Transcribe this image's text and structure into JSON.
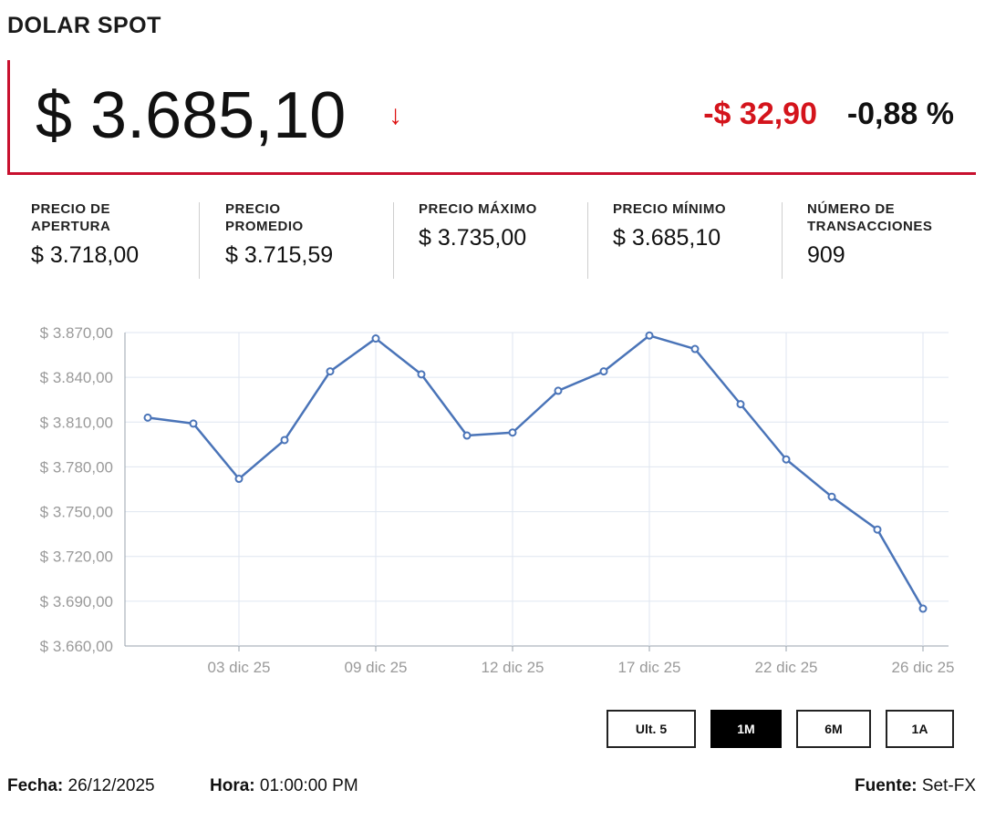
{
  "title": "DOLAR SPOT",
  "price": "$ 3.685,10",
  "arrow": "↓",
  "change": "-$ 32,90",
  "change_pct": "-0,88 %",
  "colors": {
    "accent": "#c8102e",
    "negative": "#d4141c",
    "line": "#4a74b8",
    "grid": "#dfe6f0"
  },
  "stats": [
    {
      "label": "PRECIO DE\nAPERTURA",
      "value": "$ 3.718,00"
    },
    {
      "label": "PRECIO\nPROMEDIO",
      "value": "$ 3.715,59"
    },
    {
      "label": "PRECIO MÁXIMO",
      "value": "$ 3.735,00"
    },
    {
      "label": "PRECIO MÍNIMO",
      "value": "$ 3.685,10"
    },
    {
      "label": "NÚMERO DE\nTRANSACCIONES",
      "value": "909"
    }
  ],
  "ranges": [
    "Ult. 5",
    "1M",
    "6M",
    "1A"
  ],
  "active_range": "1M",
  "footer": {
    "fecha_label": "Fecha:",
    "fecha": "26/12/2025",
    "hora_label": "Hora:",
    "hora": "01:00:00 PM",
    "fuente_label": "Fuente:",
    "fuente": "Set-FX"
  },
  "chart_data": {
    "type": "line",
    "x_tick_labels": [
      "03 dic 25",
      "09 dic 25",
      "12 dic 25",
      "17 dic 25",
      "22 dic 25",
      "26 dic 25"
    ],
    "x_tick_index": [
      2,
      5,
      8,
      11,
      14,
      17
    ],
    "y_tick_labels": [
      "$ 3.870,00",
      "$ 3.840,00",
      "$ 3.810,00",
      "$ 3.780,00",
      "$ 3.750,00",
      "$ 3.720,00",
      "$ 3.690,00",
      "$ 3.660,00"
    ],
    "ylim": [
      3660,
      3870
    ],
    "grid": true,
    "series": [
      {
        "values": [
          3813,
          3809,
          3772,
          3798,
          3844,
          3866,
          3842,
          3801,
          3803,
          3831,
          3844,
          3868,
          3859,
          3822,
          3785,
          3760,
          3738,
          3685
        ]
      }
    ]
  }
}
